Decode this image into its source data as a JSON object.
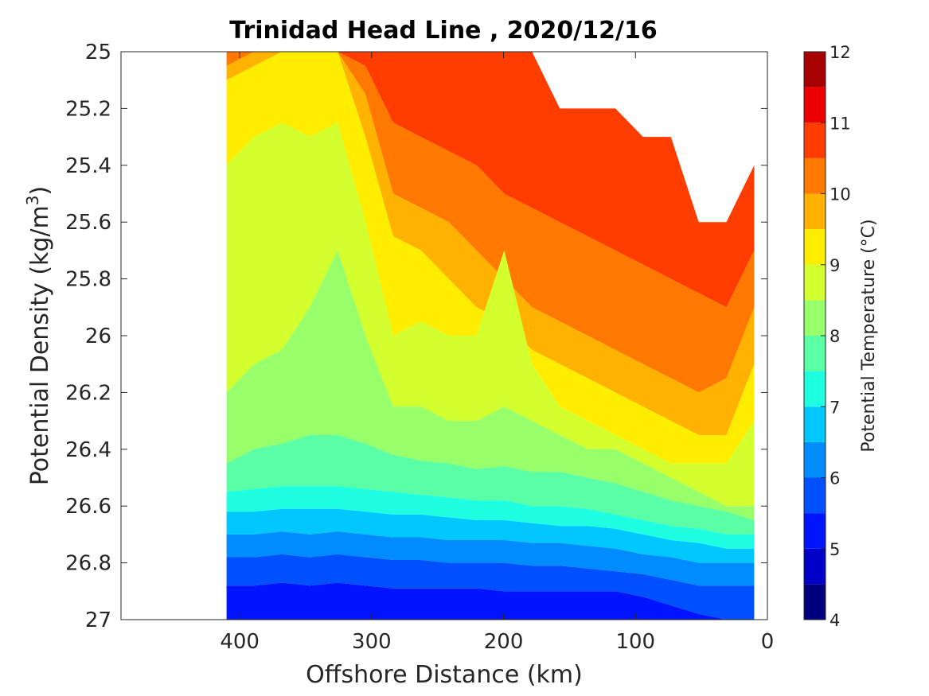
{
  "chart_data": {
    "type": "contour",
    "title": "Trinidad Head Line , 2020/12/16",
    "xlabel": "Offshore Distance (km)",
    "ylabel": "Potential Density (kg/m",
    "ylabel_sup": "3",
    "ylabel_close": ")",
    "xlim": [
      490,
      0
    ],
    "ylim": [
      27,
      25
    ],
    "x_ticks": [
      "400",
      "300",
      "200",
      "100",
      "0"
    ],
    "x_tick_values": [
      400,
      300,
      200,
      100,
      0
    ],
    "y_ticks": [
      "25",
      "25.2",
      "25.4",
      "25.6",
      "25.8",
      "26",
      "26.2",
      "26.4",
      "26.6",
      "26.8",
      "27"
    ],
    "y_tick_values": [
      25,
      25.2,
      25.4,
      25.6,
      25.8,
      26,
      26.2,
      26.4,
      26.6,
      26.8,
      27
    ],
    "colorbar": {
      "label": "Potential Temperature (°C)",
      "range": [
        4,
        12
      ],
      "ticks": [
        "4",
        "5",
        "6",
        "7",
        "8",
        "9",
        "10",
        "11",
        "12"
      ],
      "tick_values": [
        4,
        5,
        6,
        7,
        8,
        9,
        10,
        11,
        12
      ],
      "levels": [
        4,
        4.5,
        5,
        5.5,
        6,
        6.5,
        7,
        7.5,
        8,
        8.5,
        9,
        9.5,
        10,
        10.5,
        11,
        11.5,
        12
      ],
      "colors": [
        "#00007f",
        "#0000c8",
        "#0014ff",
        "#0050ff",
        "#008cff",
        "#00c8ff",
        "#1effe1",
        "#5affa5",
        "#96ff69",
        "#d2ff2d",
        "#ffed00",
        "#ffb300",
        "#ff7800",
        "#ff3c00",
        "#ee0000",
        "#a80000"
      ]
    },
    "data_extent": {
      "x_range_km": [
        410,
        10
      ],
      "density_top": [
        25,
        25,
        25,
        25,
        25,
        25,
        25,
        25,
        25,
        25,
        25,
        25,
        25.2,
        25.2,
        25.2,
        25.3,
        25.3,
        25.6,
        25.6,
        25.4
      ],
      "isotherms": [
        {
          "level": 10.5,
          "density": [
            25.0,
            25.0,
            25.0,
            25.0,
            25.0,
            25.05,
            25.25,
            25.3,
            25.35,
            25.4,
            25.5,
            25.55,
            25.6,
            25.65,
            25.7,
            25.75,
            25.8,
            25.85,
            25.9,
            25.7
          ]
        },
        {
          "level": 10,
          "density": [
            25.05,
            25.0,
            25.0,
            25.0,
            25.0,
            25.15,
            25.5,
            25.55,
            25.6,
            25.7,
            25.8,
            25.9,
            25.95,
            26.0,
            26.05,
            26.1,
            26.15,
            26.2,
            26.15,
            25.9
          ]
        },
        {
          "level": 9.5,
          "density": [
            25.1,
            25.05,
            25.0,
            25.0,
            25.0,
            25.3,
            25.65,
            25.7,
            25.8,
            25.9,
            25.95,
            26.05,
            26.1,
            26.15,
            26.2,
            26.25,
            26.3,
            26.35,
            26.35,
            26.1
          ]
        },
        {
          "level": 9,
          "density": [
            25.4,
            25.3,
            25.25,
            25.3,
            25.25,
            25.6,
            26.0,
            25.95,
            26.0,
            26.0,
            25.7,
            26.1,
            26.25,
            26.3,
            26.35,
            26.4,
            26.45,
            26.45,
            26.45,
            26.3
          ]
        },
        {
          "level": 8.5,
          "density": [
            26.2,
            26.1,
            26.05,
            25.9,
            25.7,
            26.0,
            26.25,
            26.25,
            26.3,
            26.3,
            26.25,
            26.3,
            26.35,
            26.4,
            26.4,
            26.45,
            26.5,
            26.55,
            26.6,
            26.6
          ]
        },
        {
          "level": 8,
          "density": [
            26.45,
            26.4,
            26.38,
            26.35,
            26.35,
            26.38,
            26.42,
            26.44,
            26.45,
            26.47,
            26.46,
            26.48,
            26.48,
            26.5,
            26.52,
            26.55,
            26.58,
            26.6,
            26.62,
            26.65
          ]
        },
        {
          "level": 7.5,
          "density": [
            26.55,
            26.54,
            26.53,
            26.53,
            26.53,
            26.54,
            26.55,
            26.56,
            26.57,
            26.58,
            26.58,
            26.6,
            26.6,
            26.61,
            26.63,
            26.65,
            26.67,
            26.68,
            26.7,
            26.7
          ]
        },
        {
          "level": 7,
          "density": [
            26.62,
            26.62,
            26.61,
            26.61,
            26.61,
            26.62,
            26.63,
            26.63,
            26.64,
            26.65,
            26.65,
            26.66,
            26.67,
            26.67,
            26.68,
            26.7,
            26.72,
            26.73,
            26.75,
            26.75
          ]
        },
        {
          "level": 6.5,
          "density": [
            26.7,
            26.7,
            26.69,
            26.7,
            26.69,
            26.7,
            26.71,
            26.71,
            26.72,
            26.72,
            26.72,
            26.73,
            26.73,
            26.74,
            26.75,
            26.77,
            26.78,
            26.8,
            26.8,
            26.8
          ]
        },
        {
          "level": 6,
          "density": [
            26.78,
            26.78,
            26.77,
            26.78,
            26.77,
            26.78,
            26.79,
            26.79,
            26.8,
            26.8,
            26.8,
            26.81,
            26.81,
            26.82,
            26.83,
            26.84,
            26.86,
            26.88,
            26.88,
            26.88
          ]
        },
        {
          "level": 5.5,
          "density": [
            26.88,
            26.88,
            26.87,
            26.88,
            26.87,
            26.88,
            26.89,
            26.89,
            26.89,
            26.89,
            26.9,
            26.9,
            26.9,
            26.9,
            26.9,
            26.92,
            26.95,
            26.98,
            27.0,
            27.0
          ]
        }
      ]
    }
  }
}
